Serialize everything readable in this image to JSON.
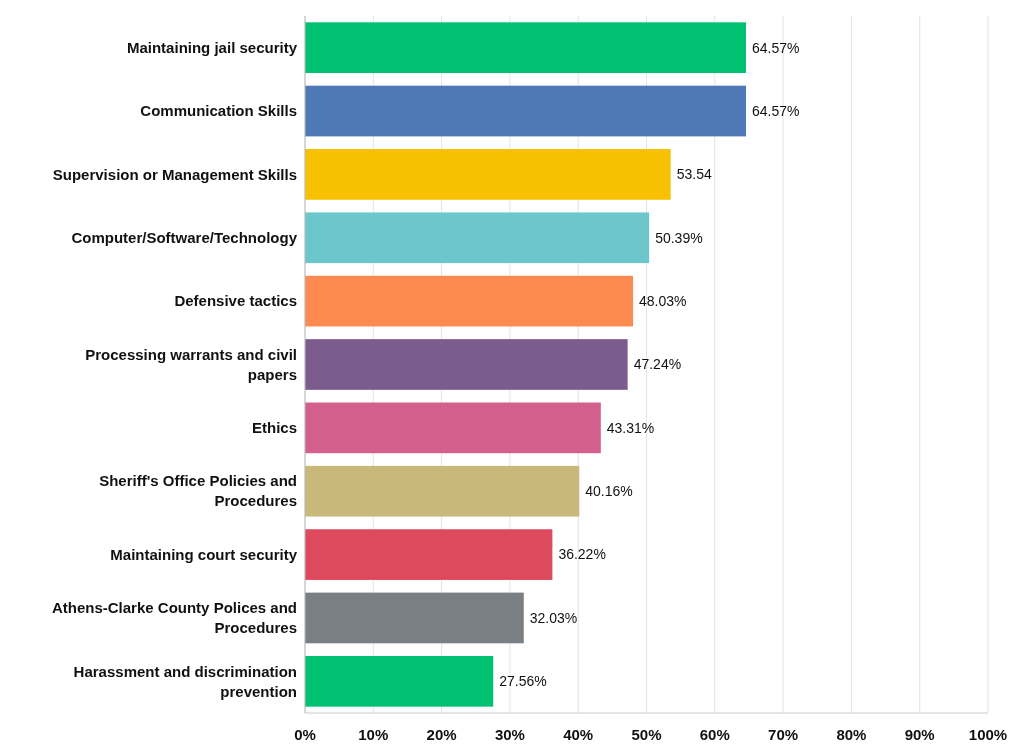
{
  "chart_data": {
    "type": "bar",
    "orientation": "horizontal",
    "categories": [
      "Maintaining jail security",
      "Communication Skills",
      "Supervision or Management Skills",
      "Computer/Software/Technology",
      "Defensive tactics",
      "Processing warrants and civil papers",
      "Ethics",
      "Sheriff's Office Policies and Procedures",
      "Maintaining court security",
      "Athens-Clarke County Polices and Procedures",
      "Harassment and discrimination prevention"
    ],
    "values": [
      64.57,
      64.57,
      53.54,
      50.39,
      48.03,
      47.24,
      43.31,
      40.16,
      36.22,
      32.03,
      27.56
    ],
    "value_labels": [
      "64.57%",
      "64.57%",
      "53.54",
      "50.39%",
      "48.03%",
      "47.24%",
      "43.31%",
      "40.16%",
      "36.22%",
      "32.03%",
      "27.56%"
    ],
    "colors": [
      "#00c072",
      "#4e79b6",
      "#f7c000",
      "#6cc7cc",
      "#fd8a50",
      "#7c5c8e",
      "#d35f8d",
      "#c8b87a",
      "#dd4a5e",
      "#7a7f84",
      "#00c072"
    ],
    "xlim": [
      0,
      100
    ],
    "xticks": [
      {
        "value": 0,
        "label": "0%"
      },
      {
        "value": 10,
        "label": "10%"
      },
      {
        "value": 20,
        "label": "20%"
      },
      {
        "value": 30,
        "label": "30%"
      },
      {
        "value": 40,
        "label": "40%"
      },
      {
        "value": 50,
        "label": "50%"
      },
      {
        "value": 60,
        "label": "60%"
      },
      {
        "value": 70,
        "label": "70%"
      },
      {
        "value": 80,
        "label": "80%"
      },
      {
        "value": 90,
        "label": "90%"
      },
      {
        "value": 100,
        "label": "100%"
      }
    ],
    "grid": "x"
  }
}
